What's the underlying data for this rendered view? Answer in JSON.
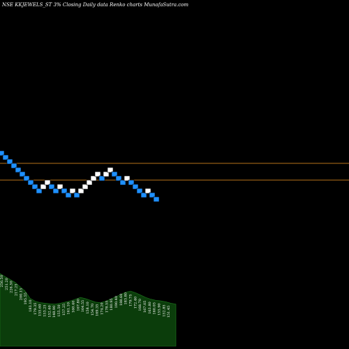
{
  "chart_data": {
    "type": "renko",
    "title": "NSE KKJEWELS_ST 3% Closing Daily data Renko charts MunafaSutra.com",
    "colors": {
      "background": "#000000",
      "up_brick": "#ffffff",
      "down_brick": "#1e90ff",
      "level_line": "#b8741a",
      "volume_fill": "#0b3d0b",
      "volume_stroke": "#1e7a1e",
      "brick_border": "#000000"
    },
    "bricks": [
      "down",
      "down",
      "down",
      "down",
      "down",
      "down",
      "down",
      "down",
      "down",
      "down",
      "up",
      "up",
      "down",
      "down",
      "up",
      "down",
      "down",
      "up",
      "down",
      "up",
      "up",
      "up",
      "up",
      "up",
      "down",
      "up",
      "up",
      "down",
      "down",
      "down",
      "up",
      "down",
      "down",
      "down",
      "down",
      "up",
      "down",
      "down"
    ],
    "levels": [
      233.1,
      219.6
    ],
    "volume": [
      250,
      240,
      230,
      220,
      205,
      190,
      165,
      155,
      150,
      148,
      146,
      145,
      148,
      152,
      156,
      162,
      168,
      164,
      158,
      152,
      150,
      155,
      162,
      170,
      178,
      186,
      190,
      184,
      176,
      168,
      162,
      158,
      156,
      153,
      148,
      145
    ],
    "volume_labels": [
      "256.50",
      "251.20",
      "226.50",
      "217.25",
      "200.15",
      "195.55",
      "183.10",
      "179.35",
      "155.60",
      "153.25",
      "152.60",
      "148.90",
      "155.50",
      "157.25",
      "161.10",
      "160.40",
      "167.80",
      "164.55",
      "158.10",
      "154.70",
      "169.35",
      "174.20",
      "178.55",
      "180.95",
      "190.40",
      "188.60",
      "183.80",
      "179.75",
      "172.40",
      "168.70",
      "167.05",
      "163.80",
      "160.05",
      "155.90",
      "152.85",
      "151.45"
    ]
  }
}
